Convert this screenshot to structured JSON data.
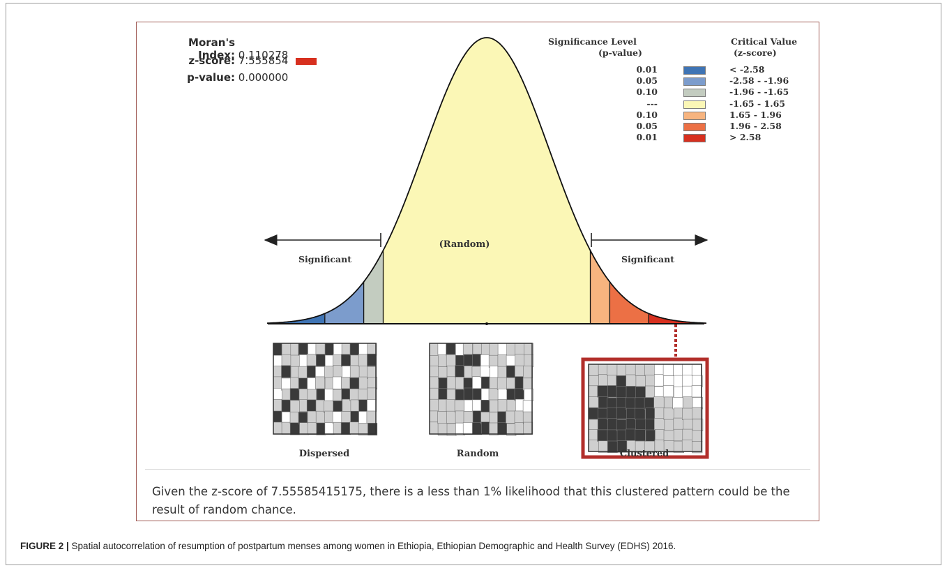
{
  "stats": {
    "moran_label": "Moran's Index:",
    "moran_value": "0.110278",
    "z_label": "z-score:",
    "z_value": "7.555854",
    "p_label": "p-value:",
    "p_value": "0.000000"
  },
  "legend": {
    "sig_header_line1": "Significance Level",
    "sig_header_line2": "(p-value)",
    "crit_header_line1": "Critical Value",
    "crit_header_line2": "(z-score)",
    "rows": [
      {
        "p": "0.01",
        "z": "< -2.58",
        "color": "#3f74b4"
      },
      {
        "p": "0.05",
        "z": "-2.58 - -1.96",
        "color": "#7c9ccc"
      },
      {
        "p": "0.10",
        "z": "-1.96 - -1.65",
        "color": "#c3ccc0"
      },
      {
        "p": "---",
        "z": "-1.65 - 1.65",
        "color": "#fbf7b6"
      },
      {
        "p": "0.10",
        "z": "1.65 - 1.96",
        "color": "#f7b47f"
      },
      {
        "p": "0.05",
        "z": "1.96 - 2.58",
        "color": "#ec7045"
      },
      {
        "p": "0.01",
        "z": "> 2.58",
        "color": "#d7301f"
      }
    ]
  },
  "curve": {
    "random_label": "(Random)",
    "left_label": "Significant",
    "right_label": "Significant"
  },
  "patterns": {
    "dispersed_label": "Dispersed",
    "random_label": "Random",
    "clustered_label": "Clustered",
    "selected": "Clustered",
    "highlight_color": "#b22e2a"
  },
  "conclusion": "Given the z-score of 7.55585415175, there is a less than 1% likelihood that this clustered pattern could be the result of random chance.",
  "caption": {
    "label": "FIGURE 2 |",
    "text": " Spatial autocorrelation of resumption of postpartum menses among women in Ethiopia, Ethiopian Demographic and Health Survey (EDHS) 2016."
  }
}
